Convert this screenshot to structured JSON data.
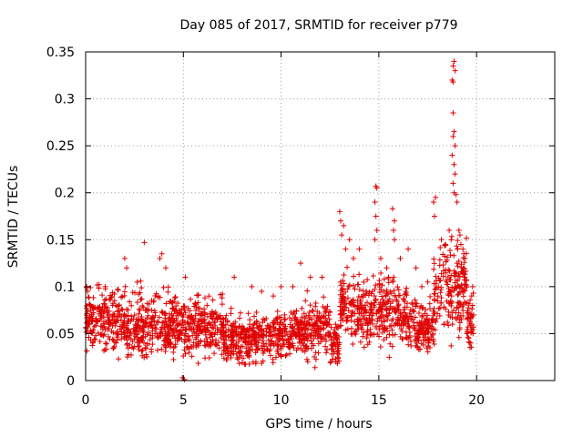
{
  "chart_data": {
    "type": "scatter",
    "title": "Day 085 of 2017, SRMTID for receiver p779",
    "xlabel": "GPS time / hours",
    "ylabel": "SRMTID / TECUs",
    "xlim": [
      0,
      24
    ],
    "ylim": [
      0,
      0.35
    ],
    "xticks": [
      0,
      5,
      10,
      15,
      20
    ],
    "xtick_labels": [
      "0",
      "5",
      "10",
      "15",
      "20"
    ],
    "yticks": [
      0,
      0.05,
      0.1,
      0.15,
      0.2,
      0.25,
      0.3,
      0.35
    ],
    "ytick_labels": [
      "0",
      "0.05",
      "0.1",
      "0.15",
      "0.2",
      "0.25",
      "0.3",
      "0.35"
    ],
    "grid": true,
    "marker": "+",
    "color": "#e00000",
    "series": [
      {
        "name": "SRMTID",
        "segments": [
          {
            "t0": 0.0,
            "t1": 2.0,
            "mean": 0.065,
            "spread": 0.02
          },
          {
            "t0": 2.0,
            "t1": 4.5,
            "mean": 0.06,
            "spread": 0.022
          },
          {
            "t0": 4.5,
            "t1": 7.0,
            "mean": 0.058,
            "spread": 0.02
          },
          {
            "t0": 7.0,
            "t1": 10.5,
            "mean": 0.045,
            "spread": 0.016
          },
          {
            "t0": 10.5,
            "t1": 12.5,
            "mean": 0.055,
            "spread": 0.02
          },
          {
            "t0": 12.5,
            "t1": 13.0,
            "mean": 0.04,
            "spread": 0.014
          },
          {
            "t0": 13.0,
            "t1": 14.0,
            "mean": 0.08,
            "spread": 0.025
          },
          {
            "t0": 14.0,
            "t1": 16.5,
            "mean": 0.075,
            "spread": 0.022
          },
          {
            "t0": 16.5,
            "t1": 17.8,
            "mean": 0.055,
            "spread": 0.018
          },
          {
            "t0": 17.8,
            "t1": 19.5,
            "mean": 0.1,
            "spread": 0.03
          },
          {
            "t0": 19.5,
            "t1": 19.85,
            "mean": 0.06,
            "spread": 0.02
          }
        ],
        "outliers": [
          {
            "x": 0.05,
            "y": 0.1
          },
          {
            "x": 0.1,
            "y": 0.095
          },
          {
            "x": 1.0,
            "y": 0.1
          },
          {
            "x": 2.0,
            "y": 0.13
          },
          {
            "x": 2.1,
            "y": 0.12
          },
          {
            "x": 3.0,
            "y": 0.147
          },
          {
            "x": 3.8,
            "y": 0.13
          },
          {
            "x": 3.9,
            "y": 0.135
          },
          {
            "x": 4.1,
            "y": 0.12
          },
          {
            "x": 5.1,
            "y": 0.11
          },
          {
            "x": 4.95,
            "y": 0.003
          },
          {
            "x": 5.05,
            "y": 0.001
          },
          {
            "x": 7.6,
            "y": 0.11
          },
          {
            "x": 8.5,
            "y": 0.1
          },
          {
            "x": 9.0,
            "y": 0.095
          },
          {
            "x": 9.6,
            "y": 0.09
          },
          {
            "x": 10.0,
            "y": 0.1
          },
          {
            "x": 10.6,
            "y": 0.1
          },
          {
            "x": 11.0,
            "y": 0.125
          },
          {
            "x": 11.5,
            "y": 0.11
          },
          {
            "x": 12.1,
            "y": 0.11
          },
          {
            "x": 12.8,
            "y": 0.02
          },
          {
            "x": 12.9,
            "y": 0.025
          },
          {
            "x": 13.0,
            "y": 0.18
          },
          {
            "x": 13.05,
            "y": 0.17
          },
          {
            "x": 13.2,
            "y": 0.165
          },
          {
            "x": 13.1,
            "y": 0.155
          },
          {
            "x": 13.3,
            "y": 0.14
          },
          {
            "x": 13.5,
            "y": 0.15
          },
          {
            "x": 13.7,
            "y": 0.13
          },
          {
            "x": 14.0,
            "y": 0.14
          },
          {
            "x": 14.85,
            "y": 0.207
          },
          {
            "x": 14.9,
            "y": 0.205
          },
          {
            "x": 14.8,
            "y": 0.19
          },
          {
            "x": 14.85,
            "y": 0.175
          },
          {
            "x": 14.9,
            "y": 0.16
          },
          {
            "x": 14.8,
            "y": 0.15
          },
          {
            "x": 15.1,
            "y": 0.13
          },
          {
            "x": 15.4,
            "y": 0.12
          },
          {
            "x": 15.5,
            "y": 0.11
          },
          {
            "x": 15.7,
            "y": 0.183
          },
          {
            "x": 15.8,
            "y": 0.17
          },
          {
            "x": 15.75,
            "y": 0.16
          },
          {
            "x": 15.8,
            "y": 0.15
          },
          {
            "x": 16.1,
            "y": 0.13
          },
          {
            "x": 16.5,
            "y": 0.14
          },
          {
            "x": 16.9,
            "y": 0.12
          },
          {
            "x": 17.2,
            "y": 0.1
          },
          {
            "x": 17.5,
            "y": 0.105
          },
          {
            "x": 17.8,
            "y": 0.19
          },
          {
            "x": 17.9,
            "y": 0.195
          },
          {
            "x": 17.85,
            "y": 0.175
          },
          {
            "x": 18.2,
            "y": 0.15
          },
          {
            "x": 18.4,
            "y": 0.145
          },
          {
            "x": 18.6,
            "y": 0.16
          },
          {
            "x": 18.7,
            "y": 0.15
          },
          {
            "x": 18.85,
            "y": 0.34
          },
          {
            "x": 18.8,
            "y": 0.335
          },
          {
            "x": 18.9,
            "y": 0.33
          },
          {
            "x": 18.75,
            "y": 0.32
          },
          {
            "x": 18.8,
            "y": 0.318
          },
          {
            "x": 18.8,
            "y": 0.285
          },
          {
            "x": 18.85,
            "y": 0.265
          },
          {
            "x": 18.8,
            "y": 0.26
          },
          {
            "x": 18.9,
            "y": 0.25
          },
          {
            "x": 18.75,
            "y": 0.24
          },
          {
            "x": 18.85,
            "y": 0.23
          },
          {
            "x": 18.9,
            "y": 0.22
          },
          {
            "x": 18.8,
            "y": 0.21
          },
          {
            "x": 18.85,
            "y": 0.2
          },
          {
            "x": 18.95,
            "y": 0.198
          },
          {
            "x": 19.0,
            "y": 0.19
          },
          {
            "x": 19.1,
            "y": 0.16
          },
          {
            "x": 19.15,
            "y": 0.155
          },
          {
            "x": 19.2,
            "y": 0.145
          },
          {
            "x": 19.3,
            "y": 0.14
          },
          {
            "x": 19.35,
            "y": 0.135
          },
          {
            "x": 19.4,
            "y": 0.13
          },
          {
            "x": 19.0,
            "y": 0.125
          },
          {
            "x": 18.7,
            "y": 0.037
          },
          {
            "x": 19.5,
            "y": 0.05
          },
          {
            "x": 19.6,
            "y": 0.045
          },
          {
            "x": 19.7,
            "y": 0.04
          },
          {
            "x": 19.8,
            "y": 0.1
          },
          {
            "x": 19.75,
            "y": 0.09
          },
          {
            "x": 19.8,
            "y": 0.08
          }
        ]
      }
    ]
  }
}
